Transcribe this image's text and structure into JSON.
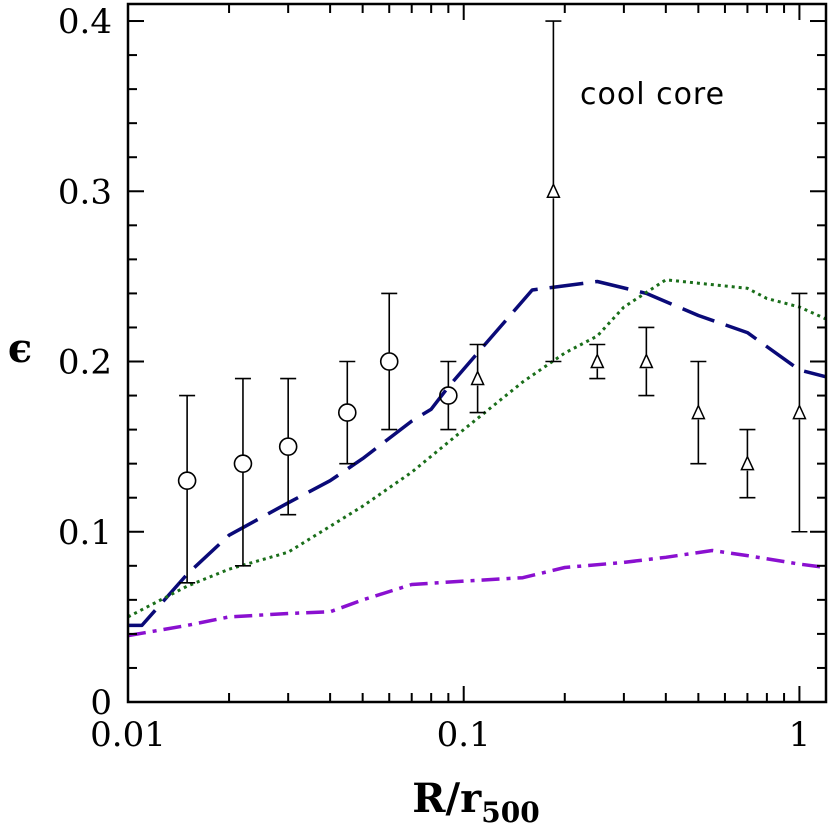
{
  "chart_data": {
    "type": "line",
    "annotation": "cool core",
    "xlabel": "R/r",
    "xlabel_sub": "500",
    "ylabel": "ϵ",
    "xscale": "log",
    "xlim": [
      0.01,
      1.2
    ],
    "ylim": [
      0,
      0.41
    ],
    "grid": false,
    "x_ticks": [
      {
        "value": 0.01,
        "label": "0.01"
      },
      {
        "value": 0.1,
        "label": "0.1"
      },
      {
        "value": 1,
        "label": "1"
      }
    ],
    "y_ticks": [
      {
        "value": 0,
        "label": "0"
      },
      {
        "value": 0.1,
        "label": "0.1"
      },
      {
        "value": 0.2,
        "label": "0.2"
      },
      {
        "value": 0.3,
        "label": "0.3"
      },
      {
        "value": 0.4,
        "label": "0.4"
      }
    ],
    "series": [
      {
        "style": "dashed",
        "color": "#0a0a78",
        "x": [
          0.01,
          0.011,
          0.015,
          0.02,
          0.03,
          0.04,
          0.05,
          0.07,
          0.08,
          0.09,
          0.11,
          0.16,
          0.25,
          0.35,
          0.5,
          0.7,
          1.0,
          1.2
        ],
        "y": [
          0.045,
          0.045,
          0.075,
          0.098,
          0.117,
          0.13,
          0.143,
          0.165,
          0.172,
          0.185,
          0.205,
          0.242,
          0.247,
          0.24,
          0.227,
          0.217,
          0.195,
          0.191
        ]
      },
      {
        "style": "dotted",
        "color": "#1a6e1a",
        "x": [
          0.01,
          0.015,
          0.02,
          0.03,
          0.05,
          0.07,
          0.1,
          0.15,
          0.2,
          0.25,
          0.3,
          0.4,
          0.5,
          0.7,
          0.8,
          1.0,
          1.2
        ],
        "y": [
          0.05,
          0.068,
          0.078,
          0.088,
          0.115,
          0.135,
          0.16,
          0.188,
          0.205,
          0.215,
          0.232,
          0.248,
          0.246,
          0.243,
          0.237,
          0.232,
          0.225
        ]
      },
      {
        "style": "dashdot",
        "color": "#8a10d0",
        "x": [
          0.01,
          0.015,
          0.02,
          0.03,
          0.04,
          0.05,
          0.07,
          0.1,
          0.15,
          0.2,
          0.3,
          0.4,
          0.55,
          0.7,
          1.0,
          1.2
        ],
        "y": [
          0.039,
          0.045,
          0.05,
          0.052,
          0.053,
          0.06,
          0.069,
          0.071,
          0.073,
          0.079,
          0.082,
          0.085,
          0.089,
          0.086,
          0.081,
          0.079
        ]
      }
    ],
    "points": [
      {
        "marker": "circle",
        "x": 0.015,
        "y": 0.13,
        "lo": 0.07,
        "hi": 0.18
      },
      {
        "marker": "circle",
        "x": 0.022,
        "y": 0.14,
        "lo": 0.08,
        "hi": 0.19
      },
      {
        "marker": "circle",
        "x": 0.03,
        "y": 0.15,
        "lo": 0.11,
        "hi": 0.19
      },
      {
        "marker": "circle",
        "x": 0.045,
        "y": 0.17,
        "lo": 0.14,
        "hi": 0.2
      },
      {
        "marker": "circle",
        "x": 0.06,
        "y": 0.2,
        "lo": 0.16,
        "hi": 0.24
      },
      {
        "marker": "circle",
        "x": 0.09,
        "y": 0.18,
        "lo": 0.16,
        "hi": 0.2
      },
      {
        "marker": "triangle",
        "x": 0.11,
        "y": 0.19,
        "lo": 0.17,
        "hi": 0.21
      },
      {
        "marker": "triangle",
        "x": 0.185,
        "y": 0.3,
        "lo": 0.2,
        "hi": 0.4
      },
      {
        "marker": "triangle",
        "x": 0.25,
        "y": 0.2,
        "lo": 0.19,
        "hi": 0.21
      },
      {
        "marker": "triangle",
        "x": 0.35,
        "y": 0.2,
        "lo": 0.18,
        "hi": 0.22
      },
      {
        "marker": "triangle",
        "x": 0.5,
        "y": 0.17,
        "lo": 0.14,
        "hi": 0.2
      },
      {
        "marker": "triangle",
        "x": 0.7,
        "y": 0.14,
        "lo": 0.12,
        "hi": 0.16
      },
      {
        "marker": "triangle",
        "x": 1.0,
        "y": 0.17,
        "lo": 0.1,
        "hi": 0.24
      }
    ]
  }
}
